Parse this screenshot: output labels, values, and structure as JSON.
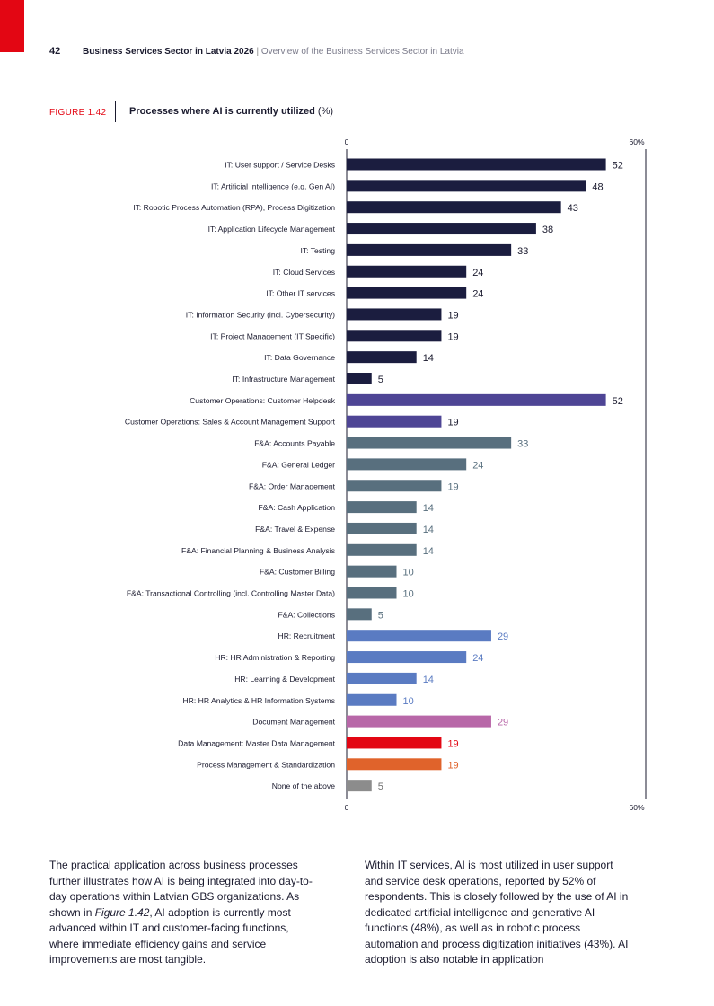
{
  "header": {
    "page_number": "42",
    "doc_title": "Business Services Sector in Latvia 2026",
    "separator": "|",
    "section": "Overview of the Business Services Sector in Latvia"
  },
  "figure": {
    "label": "FIGURE 1.42",
    "title": "Processes where AI is currently utilized",
    "title_unit": "(%)"
  },
  "colors": {
    "accent_red": "#e30613",
    "it": "#1b1d3f",
    "customer_operations": "#4e4595",
    "fa": "#586f7e",
    "hr": "#5a7bc2",
    "document_management": "#b867a8",
    "data_management": "#e30613",
    "process_management": "#e0632b",
    "none": "#8c8c8c"
  },
  "chart_data": {
    "type": "bar",
    "orientation": "horizontal",
    "title": "Processes where AI is currently utilized (%)",
    "xlim": [
      0,
      60
    ],
    "axis_min_label": "0",
    "axis_max_label": "60%",
    "categories": [
      "IT: User support / Service Desks",
      "IT: Artificial Intelligence (e.g. Gen AI)",
      "IT: Robotic Process Automation (RPA), Process Digitization",
      "IT: Application Lifecycle Management",
      "IT: Testing",
      "IT: Cloud Services",
      "IT: Other IT services",
      "IT: Information Security (incl. Cybersecurity)",
      "IT: Project Management (IT Specific)",
      "IT: Data Governance",
      "IT: Infrastructure Management",
      "Customer Operations: Customer Helpdesk",
      "Customer Operations: Sales & Account Management Support",
      "F&A: Accounts Payable",
      "F&A: General Ledger",
      "F&A: Order Management",
      "F&A: Cash Application",
      "F&A: Travel & Expense",
      "F&A: Financial Planning & Business Analysis",
      "F&A: Customer Billing",
      "F&A: Transactional Controlling (incl. Controlling Master Data)",
      "F&A: Collections",
      "HR: Recruitment",
      "HR: HR Administration & Reporting",
      "HR: Learning & Development",
      "HR: HR Analytics & HR Information Systems",
      "Document Management",
      "Data Management: Master Data Management",
      "Process Management & Standardization",
      "None of the above"
    ],
    "values": [
      52,
      48,
      43,
      38,
      33,
      24,
      24,
      19,
      19,
      14,
      5,
      52,
      19,
      33,
      24,
      19,
      14,
      14,
      14,
      10,
      10,
      5,
      29,
      24,
      14,
      10,
      29,
      19,
      19,
      5
    ],
    "groups": [
      "it",
      "it",
      "it",
      "it",
      "it",
      "it",
      "it",
      "it",
      "it",
      "it",
      "it",
      "customer_operations",
      "customer_operations",
      "fa",
      "fa",
      "fa",
      "fa",
      "fa",
      "fa",
      "fa",
      "fa",
      "fa",
      "hr",
      "hr",
      "hr",
      "hr",
      "document_management",
      "data_management",
      "process_management",
      "none"
    ]
  },
  "body": {
    "left_paragraph": "The practical application across business processes further illustrates how AI is being integrated into day-to-day operations within Latvian GBS organizations. As shown in Figure 1.42, AI adoption is currently most advanced within IT and customer-facing functions, where immediate efficiency gains and service improvements are most tangible.",
    "right_paragraph": "Within IT services, AI is most utilized in user support and service desk operations, reported by 52% of respondents. This is closely followed by the use of AI in dedicated artificial intelligence and generative AI functions (48%), as well as in robotic process automation and process digitization initiatives (43%). AI adoption is also notable in application"
  }
}
